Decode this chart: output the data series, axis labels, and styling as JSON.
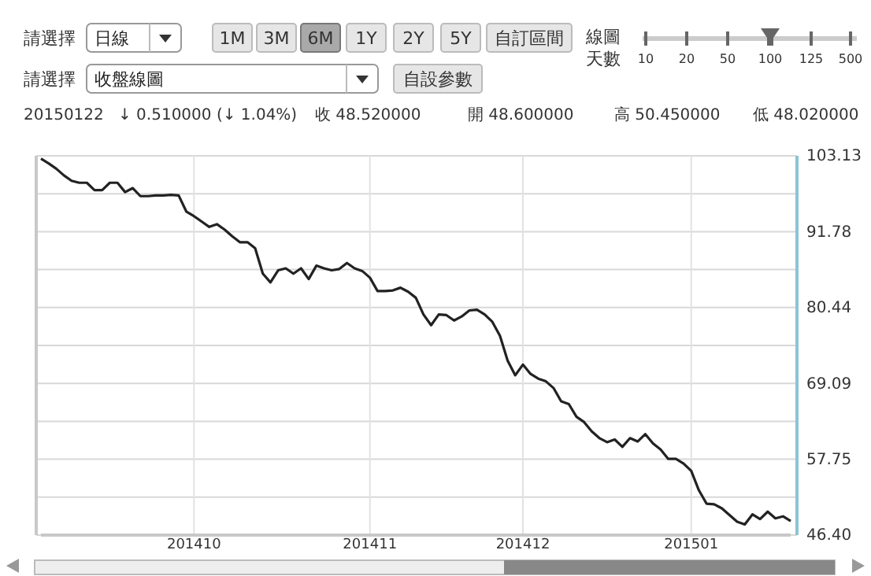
{
  "chart_data": {
    "type": "line",
    "categories": [
      null,
      null,
      null,
      null,
      null,
      null,
      null,
      null,
      null,
      null,
      null,
      null,
      null,
      null,
      null,
      null,
      null,
      null,
      null,
      null,
      "201410",
      null,
      null,
      null,
      null,
      null,
      null,
      null,
      null,
      null,
      null,
      null,
      null,
      null,
      null,
      null,
      null,
      null,
      null,
      null,
      null,
      null,
      null,
      "201411",
      null,
      null,
      null,
      null,
      null,
      null,
      null,
      null,
      null,
      null,
      null,
      null,
      null,
      null,
      null,
      null,
      null,
      null,
      null,
      "201412",
      null,
      null,
      null,
      null,
      null,
      null,
      null,
      null,
      null,
      null,
      null,
      null,
      null,
      null,
      null,
      null,
      null,
      null,
      null,
      null,
      null,
      "201501",
      null,
      null,
      null,
      null,
      null,
      null,
      null,
      null,
      null,
      null,
      null,
      null,
      null
    ],
    "series": [
      {
        "color": "#222222",
        "values": [
          102.7,
          102.0,
          101.2,
          100.2,
          99.4,
          99.1,
          99.1,
          98.0,
          98.0,
          99.1,
          99.1,
          97.7,
          98.3,
          97.1,
          97.1,
          97.2,
          97.2,
          97.3,
          97.2,
          94.8,
          94.1,
          93.3,
          92.5,
          92.9,
          92.1,
          91.1,
          90.2,
          90.2,
          89.3,
          85.5,
          84.2,
          86.0,
          86.3,
          85.5,
          86.3,
          84.7,
          86.7,
          86.3,
          86.0,
          86.2,
          87.1,
          86.3,
          85.9,
          84.9,
          82.9,
          82.9,
          83.0,
          83.4,
          82.8,
          81.9,
          79.4,
          77.8,
          79.4,
          79.3,
          78.5,
          79.1,
          80.0,
          80.1,
          79.4,
          78.3,
          76.2,
          72.5,
          70.3,
          71.9,
          70.5,
          69.8,
          69.4,
          68.4,
          66.4,
          66.0,
          64.1,
          63.3,
          61.9,
          60.9,
          60.3,
          60.7,
          59.6,
          60.9,
          60.4,
          61.5,
          60.1,
          59.2,
          57.8,
          57.8,
          57.1,
          56.0,
          53.1,
          51.1,
          51.0,
          50.4,
          49.4,
          48.4,
          48.0,
          49.5,
          48.8,
          49.9,
          48.9,
          49.2,
          48.5
        ]
      }
    ],
    "ylim": [
      46.4,
      103.13
    ],
    "yticks": [
      {
        "value": 46.4,
        "label": "46.40"
      },
      {
        "value": 52.075,
        "label": null
      },
      57.75,
      {
        "value": 63.42,
        "label": null
      },
      69.09,
      {
        "value": 74.765,
        "label": null
      },
      80.44,
      {
        "value": 86.11,
        "label": null
      },
      91.78,
      {
        "value": 97.455,
        "label": null
      },
      103.13
    ],
    "grid": true,
    "line_style": "solid",
    "annotations": [
      "請選擇",
      "日線",
      "1M",
      "3M",
      "6M",
      "1Y",
      "2Y",
      "5Y",
      "自訂區間",
      "線圖",
      "天數",
      "10",
      "20",
      "50",
      "100",
      "125",
      "500",
      "請選擇",
      "收盤線圖",
      "自設參數",
      "20150122",
      "↓ 0.510000 (↓ 1.04%)",
      "收 48.520000",
      "開 48.600000",
      "高 50.450000",
      "低 48.020000"
    ]
  }
}
